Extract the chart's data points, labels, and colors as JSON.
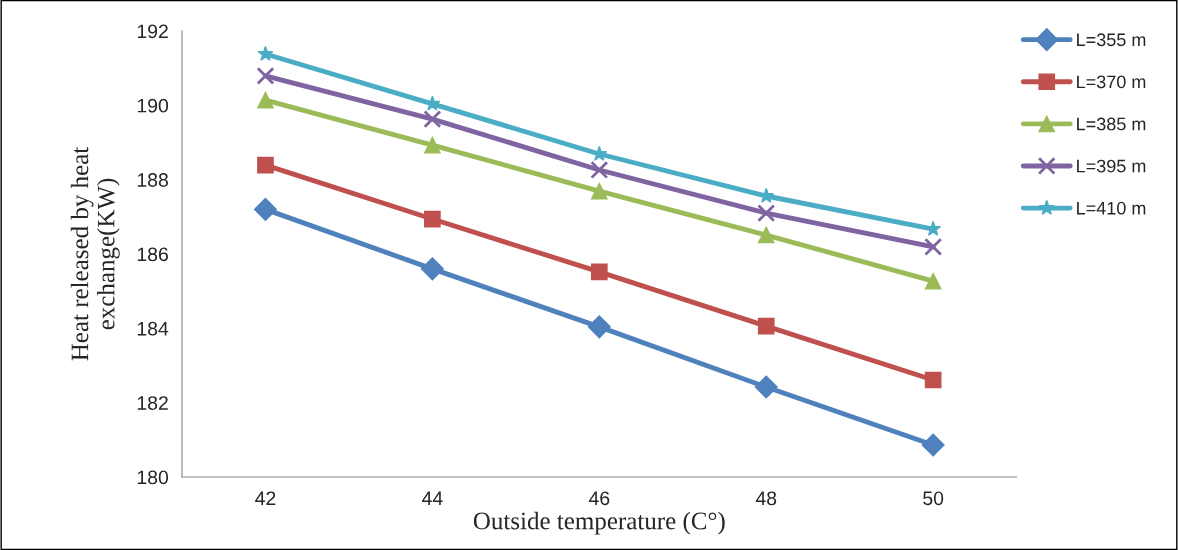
{
  "chart_data": {
    "type": "line",
    "xlabel": "Outside temperature (C°)",
    "ylabel": "Heat released by heat\nexchange(KW)",
    "categories": [
      "42",
      "44",
      "46",
      "48",
      "50"
    ],
    "series": [
      {
        "name": "L=355 m",
        "color": "#4f81bd",
        "marker": "diamond",
        "values": [
          187.2,
          185.6,
          184.04,
          182.42,
          180.86
        ]
      },
      {
        "name": "L=370 m",
        "color": "#c0504d",
        "marker": "square",
        "values": [
          188.39,
          186.94,
          185.52,
          184.06,
          182.61
        ]
      },
      {
        "name": "L=385 m",
        "color": "#9bbb59",
        "marker": "triangle",
        "values": [
          190.14,
          188.93,
          187.69,
          186.51,
          185.27
        ]
      },
      {
        "name": "L=395 m",
        "color": "#8064a2",
        "marker": "cross",
        "values": [
          190.79,
          189.63,
          188.26,
          187.1,
          186.19
        ]
      },
      {
        "name": "L=410 m",
        "color": "#4bacc6",
        "marker": "star",
        "values": [
          191.38,
          190.04,
          188.69,
          187.56,
          186.67
        ]
      }
    ],
    "ylim": [
      180,
      192
    ],
    "yticks": [
      180,
      182,
      184,
      186,
      188,
      190,
      192
    ],
    "grid": false,
    "legend": "right",
    "line_style": "solid"
  }
}
